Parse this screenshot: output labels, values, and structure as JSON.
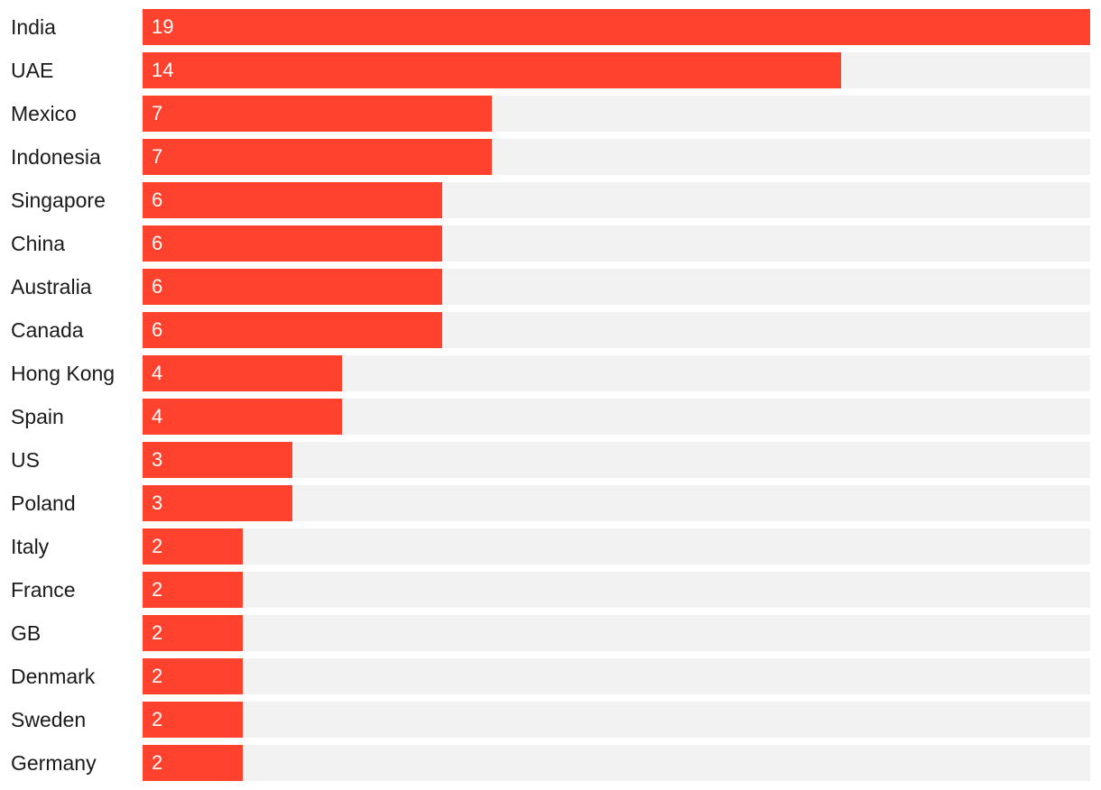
{
  "colors": {
    "bar": "#ff422d",
    "track": "#f2f2f2",
    "value_text": "#ffffff",
    "category_text": "#1a1a1a"
  },
  "chart_data": {
    "type": "bar",
    "orientation": "horizontal",
    "categories": [
      "India",
      "UAE",
      "Mexico",
      "Indonesia",
      "Singapore",
      "China",
      "Australia",
      "Canada",
      "Hong Kong",
      "Spain",
      "US",
      "Poland",
      "Italy",
      "France",
      "GB",
      "Denmark",
      "Sweden",
      "Germany"
    ],
    "values": [
      19,
      14,
      7,
      7,
      6,
      6,
      6,
      6,
      4,
      4,
      3,
      3,
      2,
      2,
      2,
      2,
      2,
      2
    ],
    "xlim": [
      0,
      19
    ],
    "grid": false,
    "legend": "none"
  }
}
